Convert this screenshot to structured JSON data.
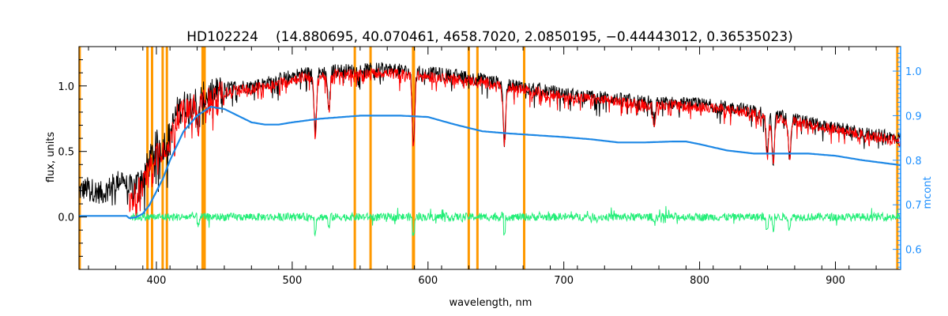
{
  "chart_data": {
    "type": "line",
    "title_object": "HD102224",
    "title_params": "(14.880695, 40.070461, 4658.7020, 2.0850195, −0.44443012, 0.36535023)",
    "xlabel": "wavelength, nm",
    "ylabel": "flux, units",
    "y2label": "mcont",
    "xlim": [
      343,
      948
    ],
    "ylim": [
      -0.4,
      1.3
    ],
    "y2lim": [
      0.555,
      1.055
    ],
    "xticks": [
      400,
      500,
      600,
      700,
      800,
      900
    ],
    "yticks": [
      0.0,
      0.5,
      1.0
    ],
    "yticklabels": [
      "0.0",
      "0.5",
      "1.0"
    ],
    "y2ticks": [
      0.6,
      0.7,
      0.8,
      0.9,
      1.0
    ],
    "y2ticklabels": [
      "0.6",
      "0.7",
      "0.8",
      "0.9",
      "1.0"
    ],
    "colors": {
      "axes": "#000000",
      "observed": "#000000",
      "model": "#ff0000",
      "residual": "#22ee77",
      "continuum": "#1e88e5",
      "masks": "#ff9900",
      "right_axis": "#1e90ff"
    },
    "masked_lines_nm": [
      343.5,
      393.4,
      396.8,
      404.6,
      407.7,
      434.0,
      435.5,
      546.1,
      557.7,
      589.0,
      589.6,
      630.0,
      636.4,
      670.8,
      945.6
    ],
    "series": [
      {
        "role": "observed",
        "x": [
          343,
          350,
          360,
          370,
          375,
          380,
          385,
          390,
          395,
          400,
          405,
          410,
          415,
          420,
          430,
          440,
          450,
          460,
          470,
          480,
          490,
          500,
          510,
          520,
          530,
          540,
          550,
          560,
          570,
          580,
          590,
          600,
          620,
          640,
          660,
          680,
          700,
          720,
          740,
          760,
          780,
          800,
          820,
          840,
          860,
          880,
          900,
          920,
          948
        ],
        "values": [
          0.2,
          0.22,
          0.18,
          0.26,
          0.3,
          0.2,
          0.25,
          0.3,
          0.42,
          0.55,
          0.55,
          0.62,
          0.8,
          0.85,
          0.9,
          0.93,
          0.98,
          1.0,
          1.0,
          1.02,
          1.05,
          1.08,
          1.1,
          1.1,
          1.12,
          1.12,
          1.12,
          1.13,
          1.13,
          1.12,
          1.1,
          1.1,
          1.08,
          1.05,
          1.01,
          0.98,
          0.94,
          0.92,
          0.9,
          0.88,
          0.87,
          0.86,
          0.84,
          0.81,
          0.77,
          0.72,
          0.68,
          0.64,
          0.6
        ]
      },
      {
        "role": "model",
        "x": [
          380,
          385,
          390,
          395,
          400,
          405,
          410,
          415,
          420,
          430,
          440,
          450,
          460,
          470,
          480,
          490,
          500,
          510,
          520,
          530,
          540,
          550,
          560,
          570,
          580,
          590,
          600,
          620,
          640,
          660,
          680,
          700,
          720,
          740,
          760,
          780,
          800,
          820,
          840,
          860,
          880,
          900,
          920,
          948
        ],
        "values": [
          0.1,
          0.18,
          0.25,
          0.38,
          0.5,
          0.52,
          0.58,
          0.76,
          0.8,
          0.86,
          0.9,
          0.95,
          0.97,
          0.98,
          1.0,
          1.02,
          1.05,
          1.07,
          1.07,
          1.09,
          1.09,
          1.09,
          1.1,
          1.1,
          1.09,
          1.08,
          1.07,
          1.05,
          1.03,
          0.99,
          0.96,
          0.92,
          0.9,
          0.88,
          0.86,
          0.85,
          0.84,
          0.82,
          0.79,
          0.75,
          0.71,
          0.67,
          0.63,
          0.58
        ]
      },
      {
        "role": "continuum",
        "axis": "right",
        "x": [
          343,
          378,
          380,
          385,
          390,
          395,
          400,
          405,
          410,
          420,
          430,
          440,
          450,
          460,
          470,
          480,
          490,
          500,
          520,
          550,
          580,
          600,
          620,
          640,
          660,
          680,
          700,
          720,
          740,
          760,
          780,
          790,
          800,
          820,
          840,
          860,
          880,
          900,
          920,
          948
        ],
        "values": [
          0.675,
          0.675,
          0.67,
          0.672,
          0.68,
          0.7,
          0.73,
          0.76,
          0.8,
          0.865,
          0.9,
          0.92,
          0.915,
          0.9,
          0.885,
          0.88,
          0.88,
          0.885,
          0.893,
          0.9,
          0.9,
          0.897,
          0.88,
          0.865,
          0.86,
          0.856,
          0.852,
          0.847,
          0.84,
          0.84,
          0.842,
          0.842,
          0.836,
          0.822,
          0.815,
          0.815,
          0.815,
          0.81,
          0.8,
          0.789
        ]
      },
      {
        "role": "residual",
        "x": [
          380,
          948
        ],
        "values": [
          0.0,
          0.0
        ]
      }
    ],
    "absorption_dips": [
      {
        "x": 517,
        "depth": 0.45
      },
      {
        "x": 527,
        "depth": 0.3
      },
      {
        "x": 589.3,
        "depth": 0.55
      },
      {
        "x": 656.3,
        "depth": 0.45
      },
      {
        "x": 766.5,
        "depth": 0.15
      },
      {
        "x": 849.8,
        "depth": 0.3
      },
      {
        "x": 854.2,
        "depth": 0.35
      },
      {
        "x": 866.2,
        "depth": 0.3
      },
      {
        "x": 430.8,
        "depth": 0.2
      }
    ]
  }
}
